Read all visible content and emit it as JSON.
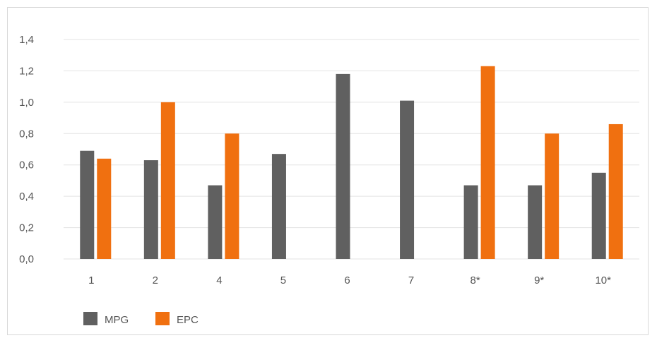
{
  "chart_data": {
    "type": "bar",
    "categories": [
      "1",
      "2",
      "4",
      "5",
      "6",
      "7",
      "8*",
      "9*",
      "10*"
    ],
    "series": [
      {
        "name": "MPG",
        "color": "#606060",
        "values": [
          0.69,
          0.63,
          0.47,
          0.67,
          1.18,
          1.01,
          0.47,
          0.47,
          0.55
        ]
      },
      {
        "name": "EPC",
        "color": "#f07010",
        "values": [
          0.64,
          1.0,
          0.8,
          null,
          null,
          null,
          1.23,
          0.8,
          0.86
        ]
      }
    ],
    "ylim": [
      0,
      1.4
    ],
    "yticks": [
      "0,0",
      "0,2",
      "0,4",
      "0,6",
      "0,8",
      "1,0",
      "1,2",
      "1,4"
    ],
    "grid": true,
    "legend_position": "bottom-left"
  }
}
